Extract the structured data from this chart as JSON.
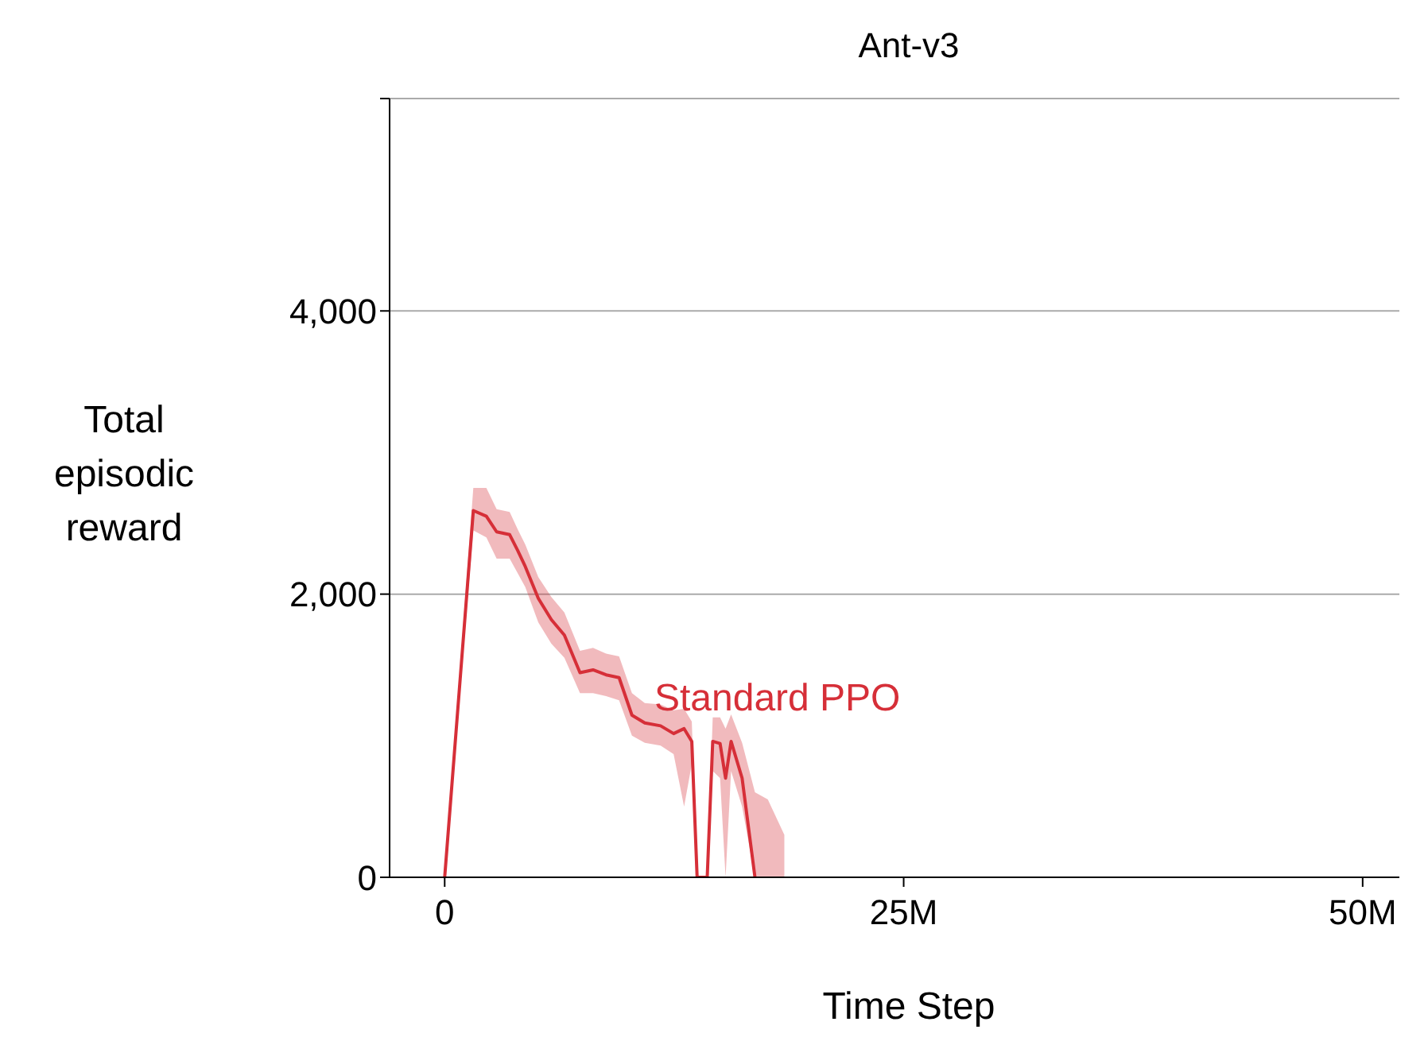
{
  "chart_data": {
    "type": "line",
    "title": "Ant-v3",
    "xlabel": "Time Step",
    "ylabel": "Total episodic reward",
    "x": [
      0,
      1.56,
      2.27,
      2.83,
      3.54,
      3.97,
      4.39,
      5.1,
      5.81,
      6.52,
      7.37,
      8.08,
      8.79,
      9.5,
      10.2,
      10.9,
      11.76,
      12.47,
      13.04,
      13.46,
      13.75,
      14.3,
      14.6,
      15.0,
      15.3,
      15.6,
      16.2,
      16.9,
      17.6,
      18.5
    ],
    "series": [
      {
        "name": "Standard PPO",
        "color": "#d62f38",
        "values": [
          0,
          2590,
          2550,
          2440,
          2420,
          2310,
          2195,
          1970,
          1820,
          1710,
          1445,
          1465,
          1430,
          1410,
          1145,
          1090,
          1070,
          1015,
          1050,
          960,
          0,
          0,
          960,
          945,
          700,
          960,
          700,
          0,
          null,
          null
        ],
        "lower": [
          0,
          2450,
          2400,
          2250,
          2250,
          2150,
          2050,
          1800,
          1650,
          1550,
          1300,
          1300,
          1280,
          1250,
          1000,
          950,
          930,
          870,
          500,
          800,
          0,
          0,
          750,
          700,
          0,
          750,
          500,
          0,
          0,
          0
        ],
        "upper": [
          0,
          2750,
          2750,
          2600,
          2580,
          2460,
          2350,
          2120,
          1980,
          1870,
          1600,
          1620,
          1580,
          1560,
          1300,
          1230,
          1220,
          1180,
          1190,
          1100,
          0,
          0,
          1130,
          1130,
          1050,
          1150,
          950,
          600,
          550,
          300
        ]
      }
    ],
    "xlim": [
      -3,
      52
    ],
    "xticks": [
      0,
      {
        "value": 25,
        "label": "25M"
      },
      {
        "value": 50,
        "label": "50M"
      }
    ],
    "ylim": [
      0,
      5500
    ],
    "yticks": [
      0,
      {
        "value": 2000,
        "label": "2,000"
      },
      {
        "value": 4000,
        "label": "4,000"
      },
      {
        "value": 5500,
        "label": null
      }
    ],
    "grid": "y",
    "legend": false
  }
}
